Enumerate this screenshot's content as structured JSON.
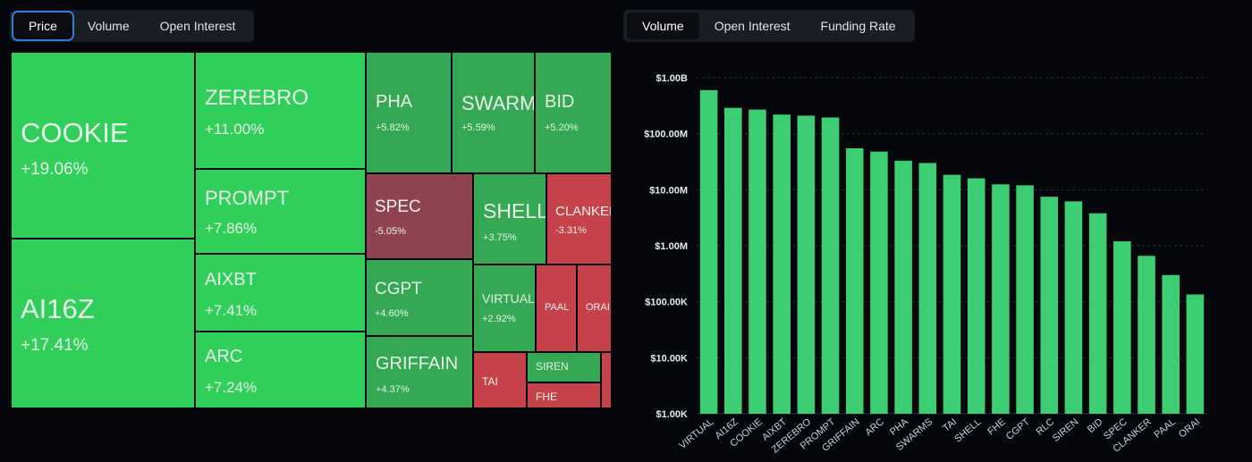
{
  "price_tabs": [
    "Price",
    "Volume",
    "Open Interest"
  ],
  "price_tabs_active": 0,
  "chart_tabs": [
    "Volume",
    "Open Interest",
    "Funding Rate"
  ],
  "chart_tabs_active": 0,
  "colors": {
    "up_strong": "#2fcf59",
    "up_medium": "#33b657",
    "up_light": "#34a852",
    "down": "#c5424a",
    "spec": "#8f4351",
    "bar": "#3dcd72",
    "background": "#05070c"
  },
  "treemap": [
    {
      "symbol": "COOKIE",
      "change": "+19.06%",
      "trend": "up_strong"
    },
    {
      "symbol": "AI16Z",
      "change": "+17.41%",
      "trend": "up_strong"
    },
    {
      "symbol": "ZEREBRO",
      "change": "+11.00%",
      "trend": "up_strong"
    },
    {
      "symbol": "PROMPT",
      "change": "+7.86%",
      "trend": "up_strong"
    },
    {
      "symbol": "AIXBT",
      "change": "+7.41%",
      "trend": "up_strong"
    },
    {
      "symbol": "ARC",
      "change": "+7.24%",
      "trend": "up_strong"
    },
    {
      "symbol": "PHA",
      "change": "+5.82%",
      "trend": "up_light"
    },
    {
      "symbol": "SWARMS",
      "change": "+5.59%",
      "trend": "up_light"
    },
    {
      "symbol": "BID",
      "change": "+5.20%",
      "trend": "up_light"
    },
    {
      "symbol": "SPEC",
      "change": "-5.05%",
      "trend": "spec"
    },
    {
      "symbol": "SHELL",
      "change": "+3.75%",
      "trend": "up_light"
    },
    {
      "symbol": "CLANKER",
      "change": "-3.31%",
      "trend": "down"
    },
    {
      "symbol": "CGPT",
      "change": "+4.60%",
      "trend": "up_light"
    },
    {
      "symbol": "VIRTUAL",
      "change": "+2.92%",
      "trend": "up_light"
    },
    {
      "symbol": "PAAL",
      "change": "",
      "trend": "down"
    },
    {
      "symbol": "ORAI",
      "change": "",
      "trend": "down"
    },
    {
      "symbol": "GRIFFAIN",
      "change": "+4.37%",
      "trend": "up_light"
    },
    {
      "symbol": "TAI",
      "change": "",
      "trend": "down"
    },
    {
      "symbol": "SIREN",
      "change": "",
      "trend": "up_light"
    },
    {
      "symbol": "FHE",
      "change": "",
      "trend": "down"
    },
    {
      "symbol": "",
      "change": "",
      "trend": "down"
    }
  ],
  "chart_data": {
    "type": "bar",
    "title": "",
    "xlabel": "",
    "ylabel": "",
    "yscale": "log",
    "ylim": [
      1000,
      1000000000
    ],
    "ytick_values": [
      1000,
      10000,
      100000,
      1000000,
      10000000,
      100000000,
      1000000000
    ],
    "ytick_labels": [
      "$1.00K",
      "$10.00K",
      "$100.00K",
      "$1.00M",
      "$10.00M",
      "$100.00M",
      "$1.00B"
    ],
    "grid": true,
    "categories": [
      "VIRTUAL",
      "AI16Z",
      "COOKIE",
      "AIXBT",
      "ZEREBRO",
      "PROMPT",
      "GRIFFAIN",
      "ARC",
      "PHA",
      "SWARMS",
      "TAI",
      "SHELL",
      "FHE",
      "CGPT",
      "RLC",
      "SIREN",
      "BID",
      "SPEC",
      "CLANKER",
      "PAAL",
      "ORAI"
    ],
    "values": [
      600000000,
      290000000,
      270000000,
      220000000,
      210000000,
      195000000,
      55000000,
      48000000,
      33000000,
      30000000,
      18500000,
      16000000,
      12500000,
      12000000,
      7500000,
      6200000,
      3800000,
      1200000,
      660000,
      300000,
      135000
    ]
  }
}
